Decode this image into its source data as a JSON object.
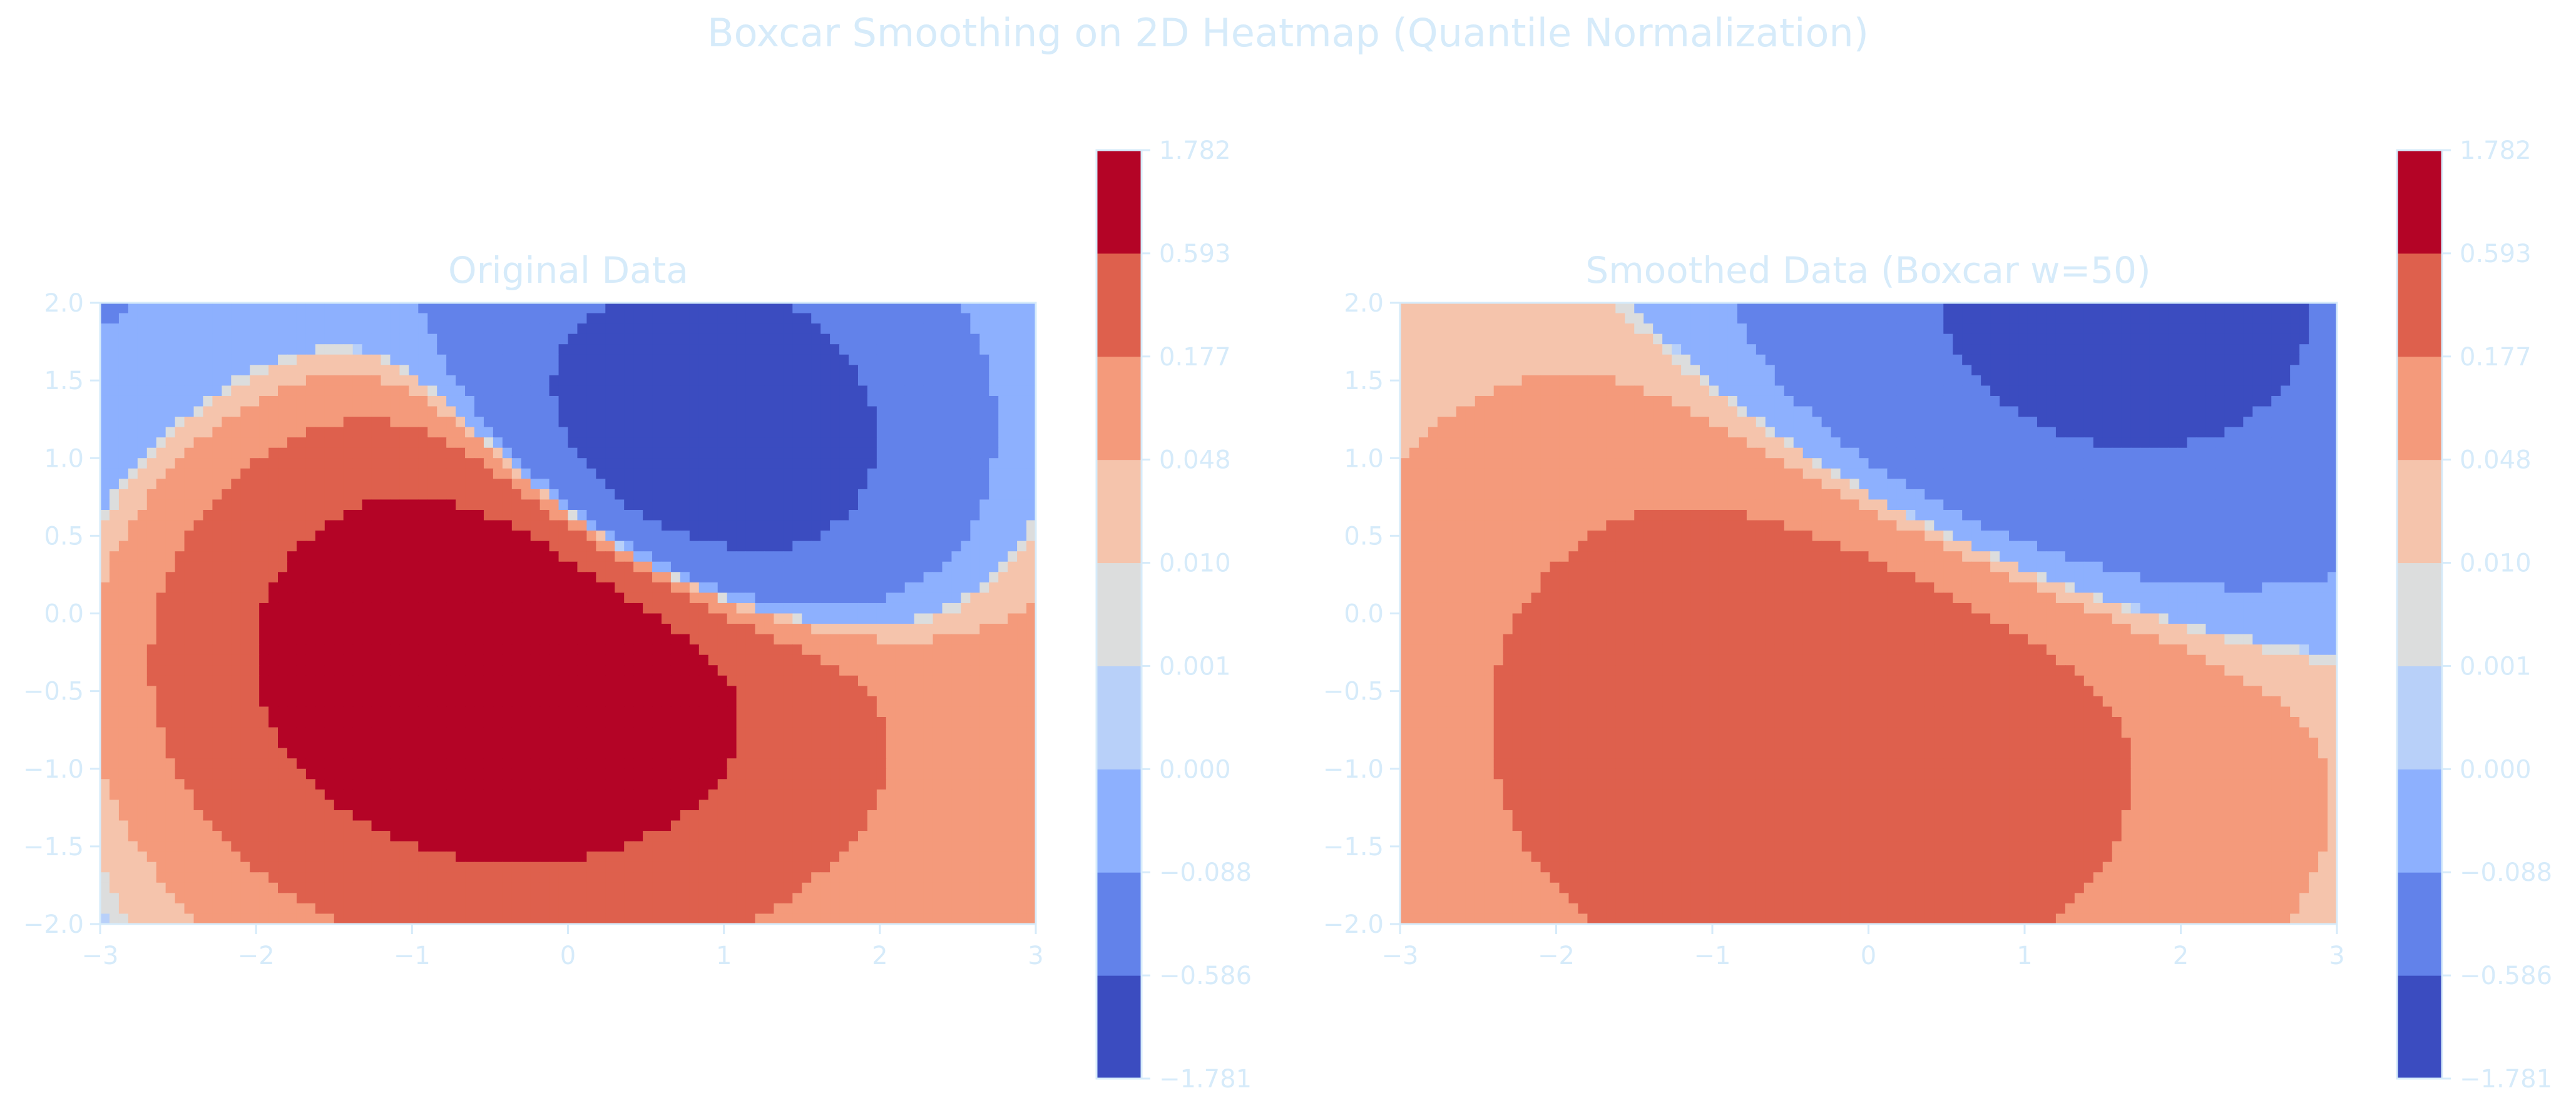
{
  "figure": {
    "title": "Boxcar Smoothing on 2D Heatmap (Quantile Normalization)",
    "text_color": "#d6ebfa"
  },
  "chart_data": [
    {
      "type": "heatmap",
      "title": "Original Data",
      "xlabel": "",
      "ylabel": "",
      "xlim": [
        -3,
        3
      ],
      "ylim": [
        -2,
        2
      ],
      "x_ticks": [
        -3,
        -2,
        -1,
        0,
        1,
        2,
        3
      ],
      "y_ticks": [
        -2.0,
        -1.5,
        -1.0,
        -0.5,
        0.0,
        0.5,
        1.0,
        1.5,
        2.0
      ],
      "x_tick_labels": [
        "−3",
        "−2",
        "−1",
        "0",
        "1",
        "2",
        "3"
      ],
      "y_tick_labels": [
        "−2.0",
        "−1.5",
        "−1.0",
        "−0.5",
        "0.0",
        "0.5",
        "1.0",
        "1.5",
        "2.0"
      ],
      "grid": false,
      "colormap": "coolwarm",
      "normalization": "quantile",
      "grid_size": [
        100,
        60
      ],
      "field": "x * y * exp(-(x^2 + y^2) / 2) shown with boundaries at quantiles",
      "smoothing": null
    },
    {
      "type": "heatmap",
      "title": "Smoothed Data (Boxcar w=50)",
      "xlabel": "",
      "ylabel": "",
      "xlim": [
        -3,
        3
      ],
      "ylim": [
        -2,
        2
      ],
      "x_ticks": [
        -3,
        -2,
        -1,
        0,
        1,
        2,
        3
      ],
      "y_ticks": [
        -2.0,
        -1.5,
        -1.0,
        -0.5,
        0.0,
        0.5,
        1.0,
        1.5,
        2.0
      ],
      "x_tick_labels": [
        "−3",
        "−2",
        "−1",
        "0",
        "1",
        "2",
        "3"
      ],
      "y_tick_labels": [
        "−2.0",
        "−1.5",
        "−1.0",
        "−0.5",
        "0.0",
        "0.5",
        "1.0",
        "1.5",
        "2.0"
      ],
      "grid": false,
      "colormap": "coolwarm",
      "normalization": "quantile",
      "grid_size": [
        100,
        60
      ],
      "smoothing": {
        "kind": "boxcar",
        "window": 50
      }
    }
  ],
  "colorbar": {
    "boundaries": [
      -1.781,
      -0.586,
      -0.088,
      0.0,
      0.001,
      0.01,
      0.048,
      0.177,
      0.593,
      1.782
    ],
    "tick_labels": [
      "−1.781",
      "−0.586",
      "−0.088",
      "0.000",
      "0.001",
      "0.010",
      "0.048",
      "0.177",
      "0.593",
      "1.782"
    ],
    "colors": [
      "#3b4cc0",
      "#6282ea",
      "#8db0fe",
      "#b8d0f9",
      "#dcdddd",
      "#f5c4ac",
      "#f49a7b",
      "#de604d",
      "#b40426"
    ]
  }
}
